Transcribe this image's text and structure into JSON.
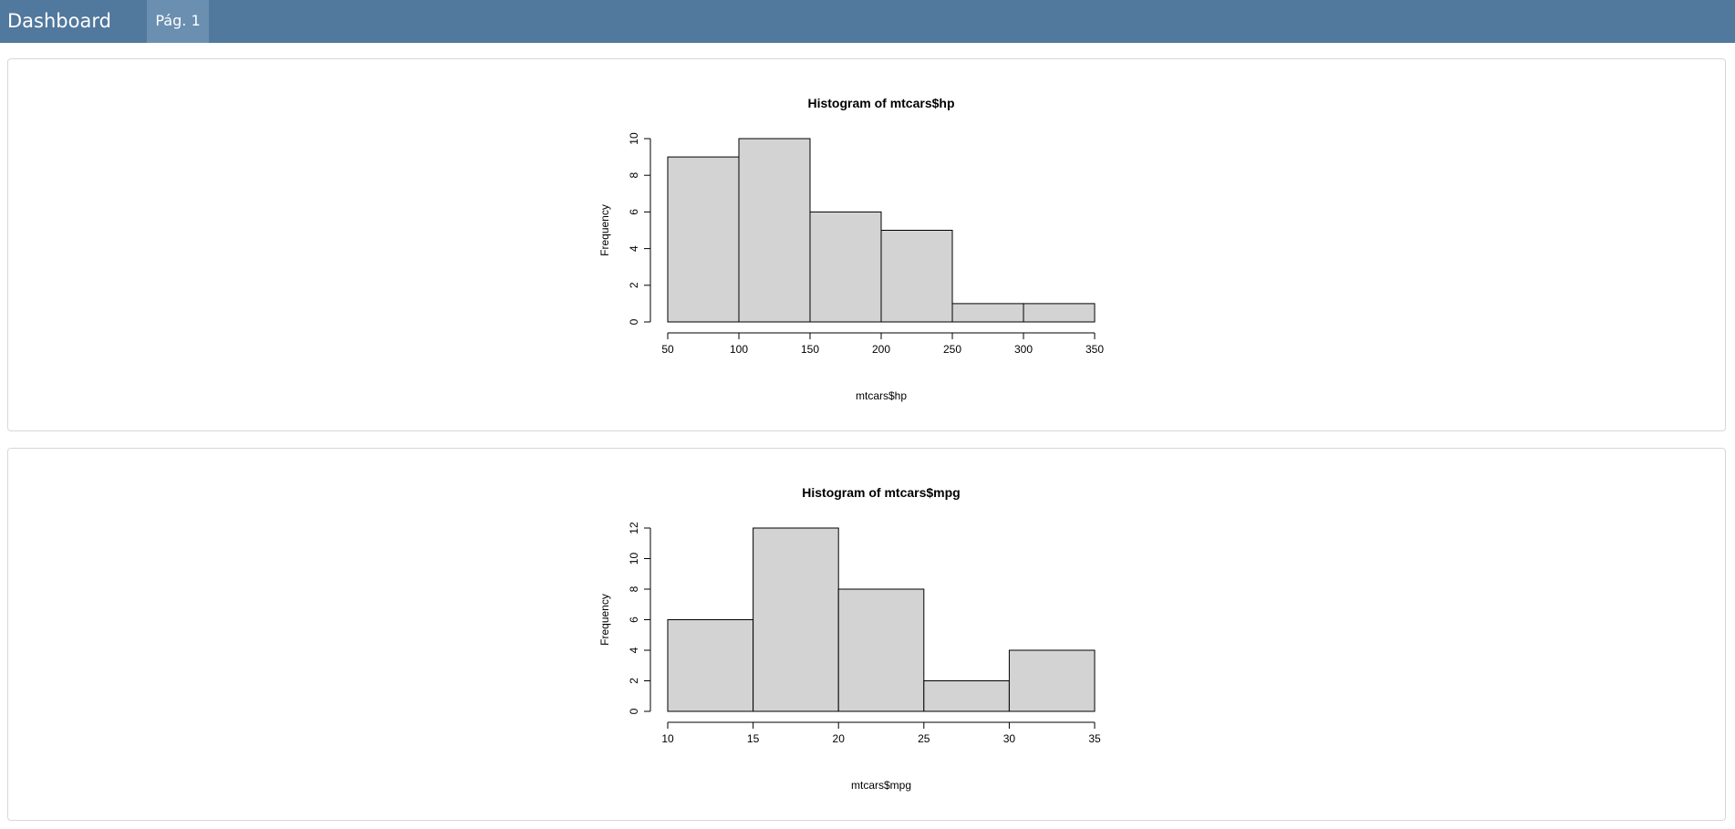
{
  "navbar": {
    "title": "Dashboard",
    "tabs": [
      {
        "label": "Pág. 1"
      }
    ],
    "background": "#51789d",
    "active_tab_color": "#6a8fb1"
  },
  "chart_data": [
    {
      "type": "bar",
      "title": "Histogram of mtcars$hp",
      "xlabel": "mtcars$hp",
      "ylabel": "Frequency",
      "bins": [
        [
          50,
          100
        ],
        [
          100,
          150
        ],
        [
          150,
          200
        ],
        [
          200,
          250
        ],
        [
          250,
          300
        ],
        [
          300,
          350
        ]
      ],
      "values": [
        9,
        10,
        6,
        5,
        1,
        1
      ],
      "xticks": [
        50,
        100,
        150,
        200,
        250,
        300,
        350
      ],
      "yticks": [
        0,
        2,
        4,
        6,
        8,
        10
      ],
      "xlim": [
        50,
        350
      ],
      "ylim": [
        0,
        10
      ],
      "bar_color": "#d3d3d3",
      "grid": false
    },
    {
      "type": "bar",
      "title": "Histogram of mtcars$mpg",
      "xlabel": "mtcars$mpg",
      "ylabel": "Frequency",
      "bins": [
        [
          10,
          15
        ],
        [
          15,
          20
        ],
        [
          20,
          25
        ],
        [
          25,
          30
        ],
        [
          30,
          35
        ]
      ],
      "values": [
        6,
        12,
        8,
        2,
        4
      ],
      "xticks": [
        10,
        15,
        20,
        25,
        30,
        35
      ],
      "yticks": [
        0,
        2,
        4,
        6,
        8,
        10,
        12
      ],
      "xlim": [
        10,
        35
      ],
      "ylim": [
        0,
        12
      ],
      "bar_color": "#d3d3d3",
      "grid": false
    }
  ]
}
